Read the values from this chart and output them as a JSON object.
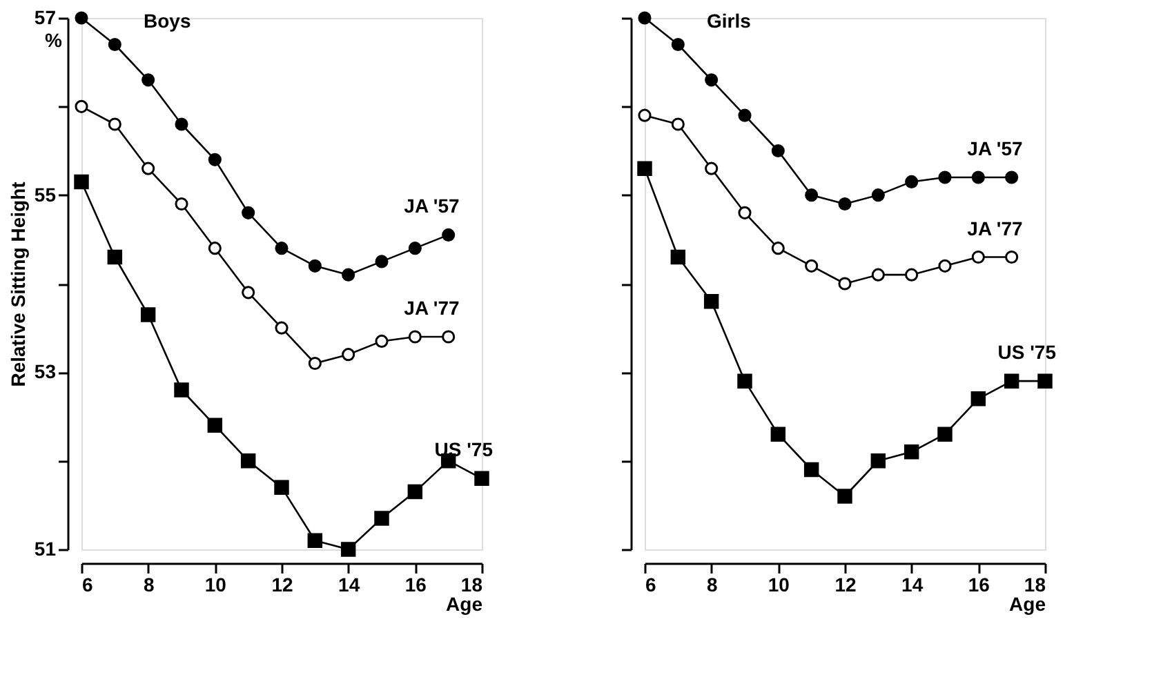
{
  "chart_data": [
    {
      "type": "line",
      "title": "Boys",
      "xlabel": "Age",
      "ylabel": "Relative Sitting Height",
      "annotations": [
        "%"
      ],
      "xlim": [
        6,
        18
      ],
      "xticks": [
        6,
        8,
        10,
        12,
        14,
        16,
        18
      ],
      "ylim": [
        51,
        57
      ],
      "yticks": [
        51,
        {
          "value": 52,
          "label": null
        },
        53,
        {
          "value": 54,
          "label": null
        },
        55,
        {
          "value": 56,
          "label": null
        },
        57
      ],
      "grid": false,
      "series": [
        {
          "name": "JA '57",
          "color": "#000000",
          "marker": "circle",
          "line_style": "solid",
          "x": [
            6,
            7,
            8,
            9,
            10,
            11,
            12,
            13,
            14,
            15,
            16,
            17
          ],
          "values": [
            57.0,
            56.7,
            56.3,
            55.8,
            55.4,
            54.8,
            54.4,
            54.2,
            54.1,
            54.25,
            54.4,
            54.55
          ]
        },
        {
          "name": "JA '77",
          "color": "#000000",
          "marker": "circle-open",
          "line_style": "solid",
          "x": [
            6,
            7,
            8,
            9,
            10,
            11,
            12,
            13,
            14,
            15,
            16,
            17
          ],
          "values": [
            56.0,
            55.8,
            55.3,
            54.9,
            54.4,
            53.9,
            53.5,
            53.1,
            53.2,
            53.35,
            53.4,
            53.4
          ]
        },
        {
          "name": "US '75",
          "color": "#000000",
          "marker": "square",
          "line_style": "solid",
          "x": [
            6,
            7,
            8,
            9,
            10,
            11,
            12,
            13,
            14,
            15,
            16,
            17,
            18
          ],
          "values": [
            55.15,
            54.3,
            53.65,
            52.8,
            52.4,
            52.0,
            51.7,
            51.1,
            51.0,
            51.35,
            51.65,
            52.0,
            51.8
          ]
        }
      ]
    },
    {
      "type": "line",
      "title": "Girls",
      "xlabel": "Age",
      "xlim": [
        6,
        18
      ],
      "xticks": [
        6,
        8,
        10,
        12,
        14,
        16,
        18
      ],
      "ylim": [
        51,
        57
      ],
      "yticks": [
        51,
        52,
        53,
        54,
        55,
        56,
        57
      ],
      "tick_labels": "x",
      "grid": false,
      "series": [
        {
          "name": "JA '57",
          "color": "#000000",
          "marker": "circle",
          "line_style": "solid",
          "x": [
            6,
            7,
            8,
            9,
            10,
            11,
            12,
            13,
            14,
            15,
            16,
            17
          ],
          "values": [
            57.0,
            56.7,
            56.3,
            55.9,
            55.5,
            55.0,
            54.9,
            55.0,
            55.15,
            55.2,
            55.2,
            55.2
          ]
        },
        {
          "name": "JA '77",
          "color": "#000000",
          "marker": "circle-open",
          "line_style": "solid",
          "x": [
            6,
            7,
            8,
            9,
            10,
            11,
            12,
            13,
            14,
            15,
            16,
            17
          ],
          "values": [
            55.9,
            55.8,
            55.3,
            54.8,
            54.4,
            54.2,
            54.0,
            54.1,
            54.1,
            54.2,
            54.3,
            54.3
          ]
        },
        {
          "name": "US '75",
          "color": "#000000",
          "marker": "square",
          "line_style": "solid",
          "x": [
            6,
            7,
            8,
            9,
            10,
            11,
            12,
            13,
            14,
            15,
            16,
            17,
            18
          ],
          "values": [
            55.3,
            54.3,
            53.8,
            52.9,
            52.3,
            51.9,
            51.6,
            52.0,
            52.1,
            52.3,
            52.7,
            52.9,
            52.9
          ]
        }
      ]
    }
  ]
}
